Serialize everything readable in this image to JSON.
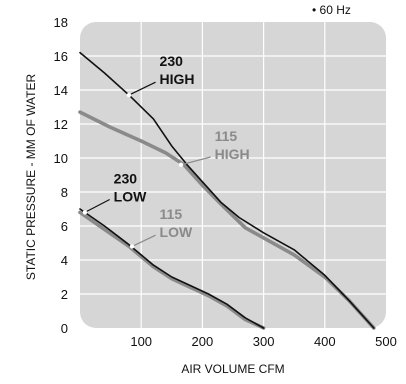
{
  "chart_data": {
    "type": "line",
    "title": "",
    "xlabel": "AIR VOLUME CFM",
    "ylabel": "STATIC PRESSURE - MM OF WATER",
    "note": "• 60 Hz",
    "xlim": [
      0,
      500
    ],
    "ylim": [
      0,
      18
    ],
    "xticks": [
      "100",
      "200",
      "300",
      "400",
      "500"
    ],
    "yticks": [
      "0",
      "2",
      "4",
      "6",
      "8",
      "10",
      "12",
      "14",
      "16",
      "18"
    ],
    "grid": true,
    "legend": "none",
    "series": [
      {
        "name": "230 HIGH",
        "label_lines": [
          "230",
          "HIGH"
        ],
        "color": "#111111",
        "x": [
          0,
          40,
          80,
          120,
          150,
          175,
          200,
          230,
          260,
          300,
          350,
          400,
          440,
          480
        ],
        "y": [
          16.2,
          15.0,
          13.7,
          12.3,
          10.7,
          9.6,
          8.6,
          7.4,
          6.5,
          5.6,
          4.6,
          3.1,
          1.6,
          0
        ]
      },
      {
        "name": "115 HIGH",
        "label_lines": [
          "115",
          "HIGH"
        ],
        "color": "#8a8a8a",
        "x": [
          0,
          50,
          100,
          140,
          170,
          200,
          230,
          270,
          310,
          350,
          400,
          440,
          480
        ],
        "y": [
          12.7,
          11.8,
          11.0,
          10.3,
          9.6,
          8.4,
          7.3,
          5.9,
          5.1,
          4.3,
          3.0,
          1.6,
          0
        ]
      },
      {
        "name": "230 LOW",
        "label_lines": [
          "230",
          "LOW"
        ],
        "color": "#111111",
        "x": [
          0,
          40,
          80,
          120,
          150,
          180,
          210,
          240,
          270,
          300
        ],
        "y": [
          7.0,
          6.0,
          4.9,
          3.7,
          3.0,
          2.5,
          2.0,
          1.4,
          0.6,
          0
        ]
      },
      {
        "name": "115 LOW",
        "label_lines": [
          "115",
          "LOW"
        ],
        "color": "#8a8a8a",
        "x": [
          0,
          40,
          80,
          120,
          150,
          180,
          210,
          240,
          270,
          300
        ],
        "y": [
          6.8,
          5.8,
          4.8,
          3.6,
          2.9,
          2.4,
          1.9,
          1.3,
          0.5,
          0
        ]
      }
    ]
  }
}
